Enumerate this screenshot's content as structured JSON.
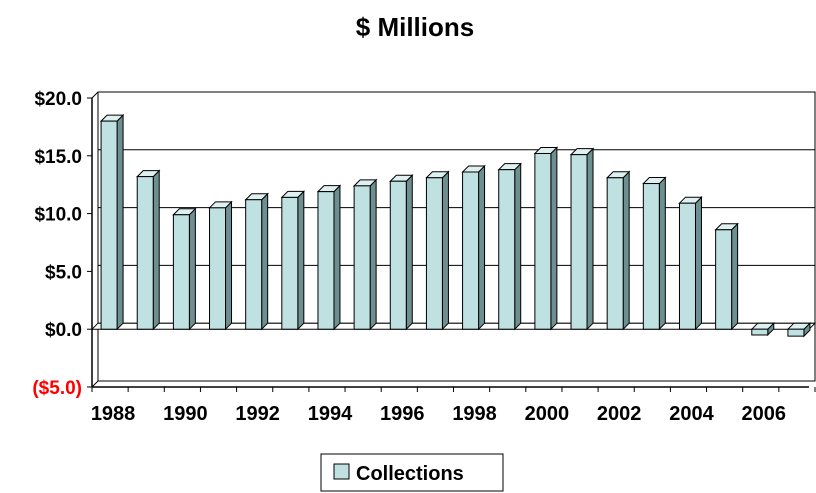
{
  "chart_data": {
    "type": "bar",
    "title": "$ Millions",
    "xlabel": "",
    "ylabel": "",
    "categories": [
      "1988",
      "1989",
      "1990",
      "1991",
      "1992",
      "1993",
      "1994",
      "1995",
      "1996",
      "1997",
      "1998",
      "1999",
      "2000",
      "2001",
      "2002",
      "2003",
      "2004",
      "2005",
      "2006",
      "2007"
    ],
    "x_tick_labels": [
      "1988",
      "1990",
      "1992",
      "1994",
      "1996",
      "1998",
      "2000",
      "2002",
      "2004",
      "2006"
    ],
    "series": [
      {
        "name": "Collections",
        "values": [
          18.0,
          13.2,
          9.9,
          10.5,
          11.2,
          11.4,
          11.9,
          12.4,
          12.8,
          13.1,
          13.6,
          13.8,
          15.2,
          15.1,
          13.1,
          12.6,
          10.9,
          8.6,
          -0.5,
          -0.6
        ]
      }
    ],
    "y_ticks": [
      20,
      15,
      10,
      5,
      0,
      -5
    ],
    "y_tick_labels": [
      "$20.0",
      "$15.0",
      "$10.0",
      "$5.0",
      "$0.0",
      "($5.0)"
    ],
    "ylim": [
      -5,
      20
    ],
    "grid": true,
    "legend_position": "bottom-center",
    "colors": {
      "bar_front": "#bfe1e1",
      "bar_side": "#6e8f8f",
      "bar_top": "#dff0f0",
      "negative_label": "#ff0000"
    }
  }
}
